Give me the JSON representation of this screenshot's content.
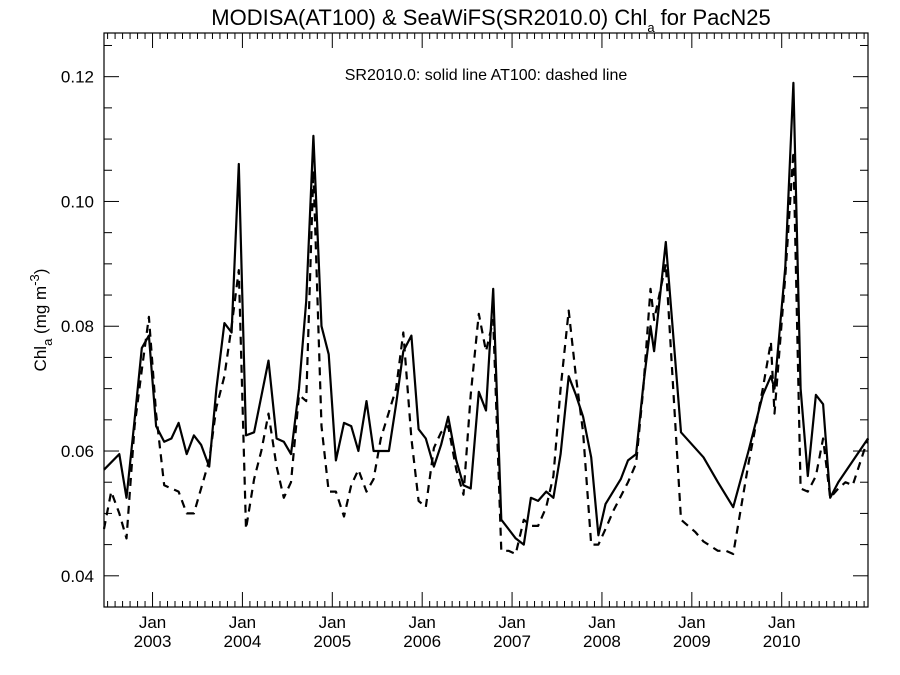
{
  "title": {
    "main": "MODISA(AT100) & SeaWiFS(SR2010.0)  Chl",
    "sub": "a",
    "tail": " for PacN25"
  },
  "annotation": "SR2010.0: solid line   AT100: dashed line",
  "ylabel": {
    "main": "Chl",
    "sub": "a",
    "units": " (mg m",
    "exp": "-3",
    "close": ")"
  },
  "chart_data": {
    "type": "line",
    "title": "MODISA(AT100) & SeaWiFS(SR2010.0) Chla for PacN25",
    "ylabel": "Chla (mg m-3)",
    "ylim": [
      0.035,
      0.127
    ],
    "xlim": [
      2002.46,
      2010.96
    ],
    "yticks": [
      0.04,
      0.06,
      0.08,
      0.1,
      0.12
    ],
    "ytick_labels": [
      "0.04",
      "0.06",
      "0.08",
      "0.10",
      "0.12"
    ],
    "xticks": [
      {
        "value": 2003.0,
        "month": "Jan",
        "year": "2003"
      },
      {
        "value": 2004.0,
        "month": "Jan",
        "year": "2004"
      },
      {
        "value": 2005.0,
        "month": "Jan",
        "year": "2005"
      },
      {
        "value": 2006.0,
        "month": "Jan",
        "year": "2006"
      },
      {
        "value": 2007.0,
        "month": "Jan",
        "year": "2007"
      },
      {
        "value": 2008.0,
        "month": "Jan",
        "year": "2008"
      },
      {
        "value": 2009.0,
        "month": "Jan",
        "year": "2009"
      },
      {
        "value": 2010.0,
        "month": "Jan",
        "year": "2010"
      }
    ],
    "series": [
      {
        "style": "solid",
        "points": [
          [
            2002.46,
            0.057
          ],
          [
            2002.63,
            0.0595
          ],
          [
            2002.71,
            0.0525
          ],
          [
            2002.8,
            0.065
          ],
          [
            2002.88,
            0.0765
          ],
          [
            2002.96,
            0.0785
          ],
          [
            2003.04,
            0.064
          ],
          [
            2003.13,
            0.0615
          ],
          [
            2003.21,
            0.062
          ],
          [
            2003.29,
            0.0645
          ],
          [
            2003.38,
            0.0595
          ],
          [
            2003.46,
            0.0625
          ],
          [
            2003.54,
            0.061
          ],
          [
            2003.63,
            0.0575
          ],
          [
            2003.71,
            0.07
          ],
          [
            2003.8,
            0.0805
          ],
          [
            2003.88,
            0.079
          ],
          [
            2003.96,
            0.106
          ],
          [
            2004.04,
            0.0625
          ],
          [
            2004.13,
            0.063
          ],
          [
            2004.29,
            0.0745
          ],
          [
            2004.38,
            0.062
          ],
          [
            2004.46,
            0.0615
          ],
          [
            2004.54,
            0.0595
          ],
          [
            2004.63,
            0.07
          ],
          [
            2004.71,
            0.084
          ],
          [
            2004.79,
            0.1105
          ],
          [
            2004.88,
            0.08
          ],
          [
            2004.96,
            0.0755
          ],
          [
            2005.04,
            0.0585
          ],
          [
            2005.13,
            0.0645
          ],
          [
            2005.21,
            0.064
          ],
          [
            2005.29,
            0.06
          ],
          [
            2005.38,
            0.068
          ],
          [
            2005.46,
            0.06
          ],
          [
            2005.63,
            0.06
          ],
          [
            2005.71,
            0.0675
          ],
          [
            2005.79,
            0.076
          ],
          [
            2005.88,
            0.0785
          ],
          [
            2005.96,
            0.0635
          ],
          [
            2006.04,
            0.062
          ],
          [
            2006.13,
            0.0575
          ],
          [
            2006.21,
            0.061
          ],
          [
            2006.29,
            0.0655
          ],
          [
            2006.38,
            0.0585
          ],
          [
            2006.46,
            0.0545
          ],
          [
            2006.54,
            0.054
          ],
          [
            2006.63,
            0.0695
          ],
          [
            2006.71,
            0.0665
          ],
          [
            2006.79,
            0.086
          ],
          [
            2006.88,
            0.049
          ],
          [
            2006.96,
            0.0475
          ],
          [
            2007.04,
            0.046
          ],
          [
            2007.13,
            0.045
          ],
          [
            2007.21,
            0.0525
          ],
          [
            2007.29,
            0.052
          ],
          [
            2007.38,
            0.0535
          ],
          [
            2007.46,
            0.0525
          ],
          [
            2007.54,
            0.0595
          ],
          [
            2007.63,
            0.072
          ],
          [
            2007.71,
            0.069
          ],
          [
            2007.79,
            0.0655
          ],
          [
            2007.88,
            0.059
          ],
          [
            2007.96,
            0.0465
          ],
          [
            2008.04,
            0.0515
          ],
          [
            2008.21,
            0.0555
          ],
          [
            2008.29,
            0.0585
          ],
          [
            2008.38,
            0.0595
          ],
          [
            2008.46,
            0.0705
          ],
          [
            2008.54,
            0.08
          ],
          [
            2008.58,
            0.076
          ],
          [
            2008.71,
            0.0935
          ],
          [
            2008.88,
            0.063
          ],
          [
            2009.13,
            0.059
          ],
          [
            2009.29,
            0.055
          ],
          [
            2009.46,
            0.051
          ],
          [
            2009.63,
            0.06
          ],
          [
            2009.79,
            0.069
          ],
          [
            2009.88,
            0.072
          ],
          [
            2009.92,
            0.07
          ],
          [
            2010.04,
            0.0895
          ],
          [
            2010.13,
            0.119
          ],
          [
            2010.21,
            0.07
          ],
          [
            2010.29,
            0.056
          ],
          [
            2010.38,
            0.069
          ],
          [
            2010.46,
            0.0675
          ],
          [
            2010.54,
            0.0525
          ],
          [
            2010.63,
            0.055
          ],
          [
            2010.96,
            0.062
          ]
        ]
      },
      {
        "style": "dashed",
        "points": [
          [
            2002.46,
            0.0475
          ],
          [
            2002.54,
            0.0535
          ],
          [
            2002.63,
            0.05
          ],
          [
            2002.71,
            0.046
          ],
          [
            2002.8,
            0.064
          ],
          [
            2002.88,
            0.073
          ],
          [
            2002.96,
            0.0815
          ],
          [
            2003.04,
            0.066
          ],
          [
            2003.13,
            0.0545
          ],
          [
            2003.21,
            0.054
          ],
          [
            2003.29,
            0.0535
          ],
          [
            2003.38,
            0.05
          ],
          [
            2003.46,
            0.05
          ],
          [
            2003.63,
            0.0585
          ],
          [
            2003.71,
            0.067
          ],
          [
            2003.8,
            0.072
          ],
          [
            2003.88,
            0.08
          ],
          [
            2003.96,
            0.089
          ],
          [
            2004.04,
            0.0475
          ],
          [
            2004.13,
            0.0555
          ],
          [
            2004.21,
            0.06
          ],
          [
            2004.29,
            0.066
          ],
          [
            2004.38,
            0.0575
          ],
          [
            2004.46,
            0.0525
          ],
          [
            2004.54,
            0.055
          ],
          [
            2004.63,
            0.069
          ],
          [
            2004.71,
            0.068
          ],
          [
            2004.79,
            0.105
          ],
          [
            2004.88,
            0.064
          ],
          [
            2004.96,
            0.0535
          ],
          [
            2005.04,
            0.0535
          ],
          [
            2005.13,
            0.0495
          ],
          [
            2005.21,
            0.0545
          ],
          [
            2005.29,
            0.057
          ],
          [
            2005.38,
            0.0535
          ],
          [
            2005.46,
            0.0555
          ],
          [
            2005.54,
            0.062
          ],
          [
            2005.71,
            0.07
          ],
          [
            2005.79,
            0.079
          ],
          [
            2005.88,
            0.062
          ],
          [
            2005.96,
            0.052
          ],
          [
            2006.04,
            0.051
          ],
          [
            2006.13,
            0.0605
          ],
          [
            2006.21,
            0.063
          ],
          [
            2006.29,
            0.064
          ],
          [
            2006.38,
            0.057
          ],
          [
            2006.46,
            0.053
          ],
          [
            2006.54,
            0.069
          ],
          [
            2006.63,
            0.082
          ],
          [
            2006.71,
            0.076
          ],
          [
            2006.79,
            0.081
          ],
          [
            2006.88,
            0.044
          ],
          [
            2006.96,
            0.044
          ],
          [
            2007.04,
            0.0435
          ],
          [
            2007.13,
            0.049
          ],
          [
            2007.21,
            0.048
          ],
          [
            2007.29,
            0.048
          ],
          [
            2007.38,
            0.051
          ],
          [
            2007.46,
            0.056
          ],
          [
            2007.54,
            0.07
          ],
          [
            2007.63,
            0.0825
          ],
          [
            2007.71,
            0.072
          ],
          [
            2007.79,
            0.063
          ],
          [
            2007.88,
            0.045
          ],
          [
            2007.96,
            0.045
          ],
          [
            2008.04,
            0.0475
          ],
          [
            2008.13,
            0.0505
          ],
          [
            2008.29,
            0.055
          ],
          [
            2008.38,
            0.058
          ],
          [
            2008.46,
            0.07
          ],
          [
            2008.54,
            0.086
          ],
          [
            2008.58,
            0.081
          ],
          [
            2008.71,
            0.09
          ],
          [
            2008.88,
            0.049
          ],
          [
            2009.04,
            0.047
          ],
          [
            2009.13,
            0.0455
          ],
          [
            2009.29,
            0.044
          ],
          [
            2009.38,
            0.044
          ],
          [
            2009.46,
            0.0435
          ],
          [
            2009.63,
            0.058
          ],
          [
            2009.79,
            0.07
          ],
          [
            2009.88,
            0.0775
          ],
          [
            2009.92,
            0.066
          ],
          [
            2010.04,
            0.088
          ],
          [
            2010.13,
            0.108
          ],
          [
            2010.21,
            0.054
          ],
          [
            2010.29,
            0.0535
          ],
          [
            2010.38,
            0.056
          ],
          [
            2010.46,
            0.062
          ],
          [
            2010.54,
            0.0525
          ],
          [
            2010.63,
            0.054
          ],
          [
            2010.71,
            0.055
          ],
          [
            2010.79,
            0.0545
          ],
          [
            2010.96,
            0.062
          ]
        ]
      }
    ]
  }
}
